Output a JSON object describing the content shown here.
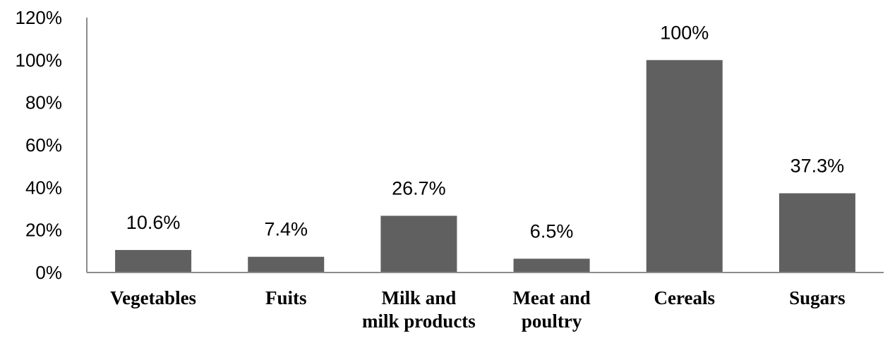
{
  "chart_data": {
    "type": "bar",
    "title": "",
    "xlabel": "",
    "ylabel": "",
    "categories": [
      [
        "Vegetables"
      ],
      [
        "Fuits"
      ],
      [
        "Milk and",
        "milk products"
      ],
      [
        "Meat and",
        "poultry"
      ],
      [
        "Cereals"
      ],
      [
        "Sugars"
      ]
    ],
    "values": [
      10.6,
      7.4,
      26.7,
      6.5,
      100,
      37.3
    ],
    "data_labels": [
      "10.6%",
      "7.4%",
      "26.7%",
      "6.5%",
      "100%",
      "37.3%"
    ],
    "ylim": [
      0,
      120
    ],
    "yticks": [
      0,
      20,
      40,
      60,
      80,
      100,
      120
    ],
    "ytick_labels": [
      "0%",
      "20%",
      "40%",
      "60%",
      "80%",
      "100%",
      "120%"
    ],
    "grid": false,
    "legend": "none",
    "bar_color": "#606060",
    "axis_color": "#8c8c8c"
  }
}
